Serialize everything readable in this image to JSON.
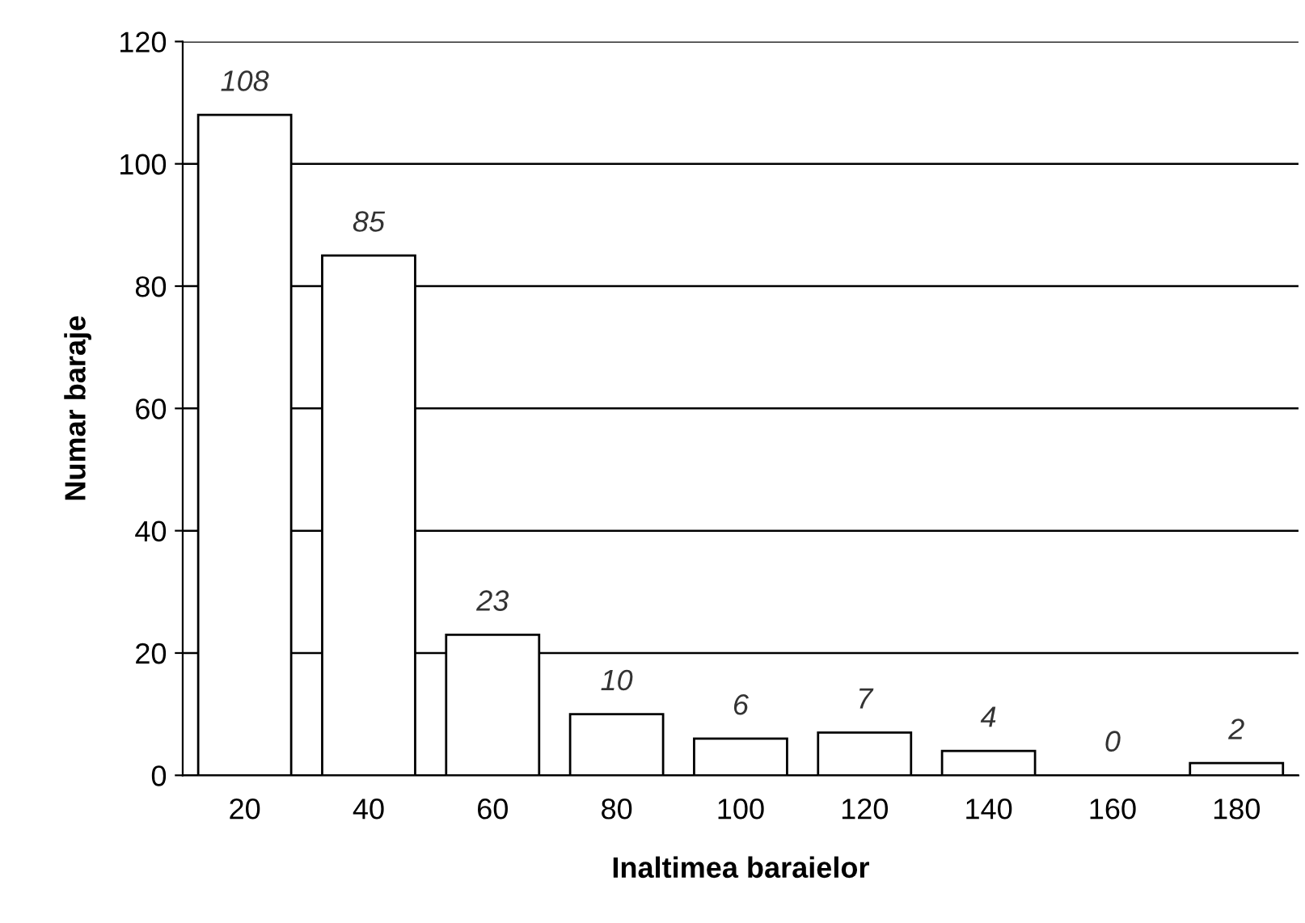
{
  "chart_data": {
    "type": "bar",
    "xlabel": "Inaltimea baraielor",
    "ylabel": "Numar baraje",
    "categories": [
      "20",
      "40",
      "60",
      "80",
      "100",
      "120",
      "140",
      "160",
      "180"
    ],
    "values": [
      108,
      85,
      23,
      10,
      6,
      7,
      4,
      0,
      2
    ],
    "color": "#ffffff",
    "ylim": [
      0,
      120
    ],
    "yticks": [
      0,
      20,
      40,
      60,
      80,
      100,
      120
    ],
    "grid": "y",
    "data_labels": true
  }
}
